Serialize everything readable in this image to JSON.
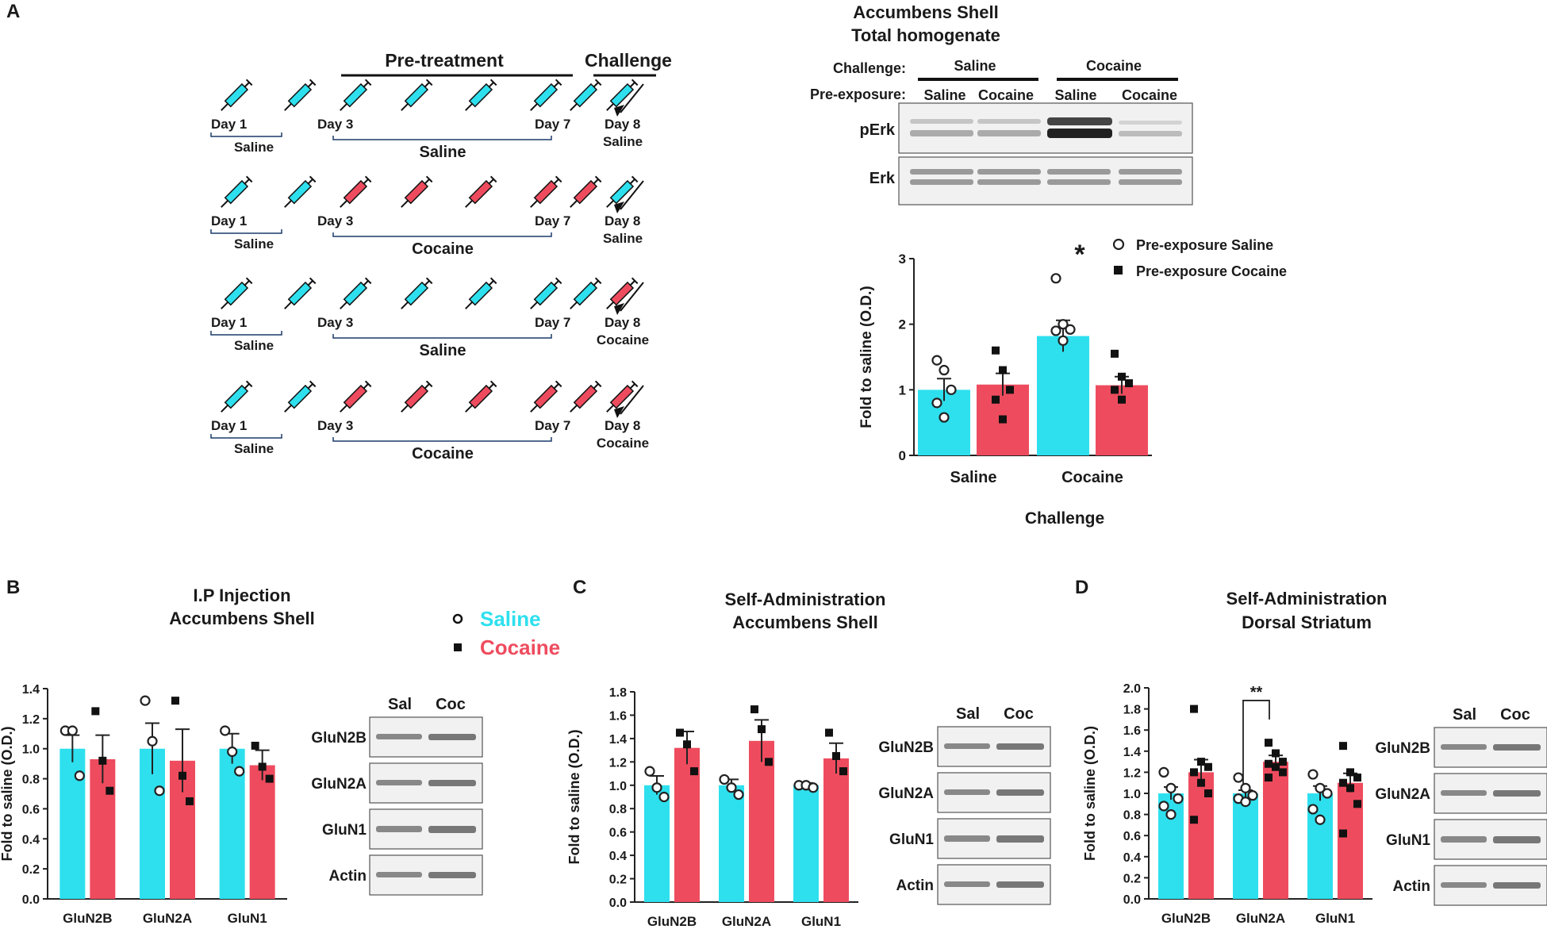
{
  "panels": {
    "A": {
      "label": "A",
      "schedule": {
        "pretreatment_header": "Pre-treatment",
        "challenge_header": "Challenge",
        "rows": [
          {
            "saline_label": "Saline",
            "pretreatment_label": "Saline",
            "day1": "Day 1",
            "day3": "Day 3",
            "day7": "Day 7",
            "day8": "Day 8",
            "challenge_label": "Saline",
            "pre_drug": "saline",
            "challenge_drug": "saline"
          },
          {
            "saline_label": "Saline",
            "pretreatment_label": "Cocaine",
            "day1": "Day 1",
            "day3": "Day 3",
            "day7": "Day 7",
            "day8": "Day 8",
            "challenge_label": "Saline",
            "pre_drug": "cocaine",
            "challenge_drug": "saline"
          },
          {
            "saline_label": "Saline",
            "pretreatment_label": "Saline",
            "day1": "Day 1",
            "day3": "Day 3",
            "day7": "Day 7",
            "day8": "Day 8",
            "challenge_label": "Cocaine",
            "pre_drug": "saline",
            "challenge_drug": "cocaine"
          },
          {
            "saline_label": "Saline",
            "pretreatment_label": "Cocaine",
            "day1": "Day 1",
            "day3": "Day 3",
            "day7": "Day 7",
            "day8": "Day 8",
            "challenge_label": "Cocaine",
            "pre_drug": "cocaine",
            "challenge_drug": "cocaine"
          }
        ]
      },
      "blot": {
        "title_line1": "Accumbens Shell",
        "title_line2": "Total homogenate",
        "challenge_label": "Challenge:",
        "preexposure_label": "Pre-exposure:",
        "groups": [
          "Saline",
          "Cocaine"
        ],
        "lanes": [
          "Saline",
          "Cocaine",
          "Saline",
          "Cocaine"
        ],
        "rows": [
          "pErk",
          "Erk"
        ],
        "significance": "*"
      }
    },
    "B": {
      "label": "B",
      "title_line1": "I.P Injection",
      "title_line2": "Accumbens Shell",
      "blot_lanes": [
        "Sal",
        "Coc"
      ],
      "blot_rows": [
        "GluN2B",
        "GluN2A",
        "GluN1",
        "Actin"
      ]
    },
    "C": {
      "label": "C",
      "title_line1": "Self-Administration",
      "title_line2": "Accumbens Shell",
      "blot_lanes": [
        "Sal",
        "Coc"
      ],
      "blot_rows": [
        "GluN2B",
        "GluN2A",
        "GluN1",
        "Actin"
      ]
    },
    "D": {
      "label": "D",
      "title_line1": "Self-Administration",
      "title_line2": "Dorsal Striatum",
      "blot_lanes": [
        "Sal",
        "Coc"
      ],
      "blot_rows": [
        "GluN2B",
        "GluN2A",
        "GluN1",
        "Actin"
      ],
      "significance": "**"
    }
  },
  "legend_B": {
    "saline": "Saline",
    "cocaine": "Cocaine"
  },
  "colors": {
    "saline": "#2ee0ee",
    "cocaine": "#ee4c5e",
    "text": "#1a1a1a"
  },
  "chart_data": [
    {
      "id": "A",
      "type": "bar",
      "title": "",
      "xlabel": "Challenge",
      "ylabel": "Fold to saline (O.D.)",
      "categories": [
        "Saline",
        "Cocaine"
      ],
      "ylim": [
        0,
        3
      ],
      "yticks": [
        "0",
        "1",
        "2",
        "3"
      ],
      "legend": [
        "Pre-exposure Saline",
        "Pre-exposure Cocaine"
      ],
      "series": [
        {
          "name": "Pre-exposure Saline",
          "values": [
            1.0,
            1.82
          ],
          "errors": [
            0.17,
            0.24
          ],
          "points": [
            [
              1.45,
              1.3,
              1.0,
              0.8,
              0.58
            ],
            [
              2.7,
              2.0,
              1.92,
              1.9,
              1.75
            ]
          ]
        },
        {
          "name": "Pre-exposure Cocaine",
          "values": [
            1.08,
            1.07
          ],
          "errors": [
            0.17,
            0.13
          ],
          "points": [
            [
              1.6,
              1.3,
              1.0,
              0.85,
              0.55
            ],
            [
              1.55,
              1.2,
              1.1,
              1.0,
              0.85
            ]
          ]
        }
      ]
    },
    {
      "id": "B",
      "type": "bar",
      "title": "I.P Injection Accumbens Shell",
      "xlabel": "",
      "ylabel": "Fold to saline (O.D.)",
      "categories": [
        "GluN2B",
        "GluN2A",
        "GluN1"
      ],
      "ylim": [
        0,
        1.4
      ],
      "yticks": [
        "0.0",
        "0.2",
        "0.4",
        "0.6",
        "0.8",
        "1.0",
        "1.2",
        "1.4"
      ],
      "series": [
        {
          "name": "Saline",
          "values": [
            1.0,
            1.0,
            1.0
          ],
          "errors": [
            0.09,
            0.17,
            0.1
          ],
          "points": [
            [
              1.12,
              1.12,
              0.82
            ],
            [
              1.32,
              1.05,
              0.72
            ],
            [
              1.12,
              0.98,
              0.85
            ]
          ]
        },
        {
          "name": "Cocaine",
          "values": [
            0.93,
            0.92,
            0.89
          ],
          "errors": [
            0.16,
            0.21,
            0.1
          ],
          "points": [
            [
              1.25,
              0.92,
              0.72
            ],
            [
              1.32,
              0.82,
              0.65
            ],
            [
              1.02,
              0.88,
              0.8
            ]
          ]
        }
      ]
    },
    {
      "id": "C",
      "type": "bar",
      "title": "Self-Administration Accumbens Shell",
      "xlabel": "",
      "ylabel": "Fold to saline (O.D.)",
      "categories": [
        "GluN2B",
        "GluN2A",
        "GluN1"
      ],
      "ylim": [
        0,
        1.8
      ],
      "yticks": [
        "0.0",
        "0.2",
        "0.4",
        "0.6",
        "0.8",
        "1.0",
        "1.2",
        "1.4",
        "1.6",
        "1.8"
      ],
      "series": [
        {
          "name": "Saline",
          "values": [
            1.0,
            1.0,
            1.0
          ],
          "errors": [
            0.08,
            0.05,
            0.02
          ],
          "points": [
            [
              1.12,
              0.98,
              0.9
            ],
            [
              1.05,
              0.98,
              0.92
            ],
            [
              1.0,
              1.0,
              0.98
            ]
          ]
        },
        {
          "name": "Cocaine",
          "values": [
            1.32,
            1.38,
            1.23
          ],
          "errors": [
            0.14,
            0.18,
            0.13
          ],
          "points": [
            [
              1.45,
              1.35,
              1.12
            ],
            [
              1.65,
              1.48,
              1.2
            ],
            [
              1.45,
              1.25,
              1.12
            ]
          ]
        }
      ]
    },
    {
      "id": "D",
      "type": "bar",
      "title": "Self-Administration Dorsal Striatum",
      "xlabel": "",
      "ylabel": "Fold to saline (O.D.)",
      "categories": [
        "GluN2B",
        "GluN2A",
        "GluN1"
      ],
      "ylim": [
        0,
        2.0
      ],
      "yticks": [
        "0.0",
        "0.2",
        "0.4",
        "0.6",
        "0.8",
        "1.0",
        "1.2",
        "1.4",
        "1.6",
        "1.8",
        "2.0"
      ],
      "series": [
        {
          "name": "Saline",
          "values": [
            1.0,
            1.0,
            1.0
          ],
          "errors": [
            0.06,
            0.03,
            0.07
          ],
          "points": [
            [
              1.2,
              1.05,
              0.95,
              0.88,
              0.8
            ],
            [
              1.15,
              1.05,
              0.98,
              0.95,
              0.92
            ],
            [
              1.18,
              1.05,
              1.0,
              0.85,
              0.75
            ]
          ]
        },
        {
          "name": "Cocaine",
          "values": [
            1.2,
            1.3,
            1.1
          ],
          "errors": [
            0.12,
            0.06,
            0.09
          ],
          "points": [
            [
              1.8,
              1.3,
              1.25,
              1.2,
              1.1,
              1.0,
              0.75
            ],
            [
              1.48,
              1.38,
              1.3,
              1.28,
              1.25,
              1.2,
              1.15
            ],
            [
              1.45,
              1.2,
              1.15,
              1.1,
              1.05,
              0.9,
              0.62
            ]
          ]
        }
      ]
    }
  ]
}
